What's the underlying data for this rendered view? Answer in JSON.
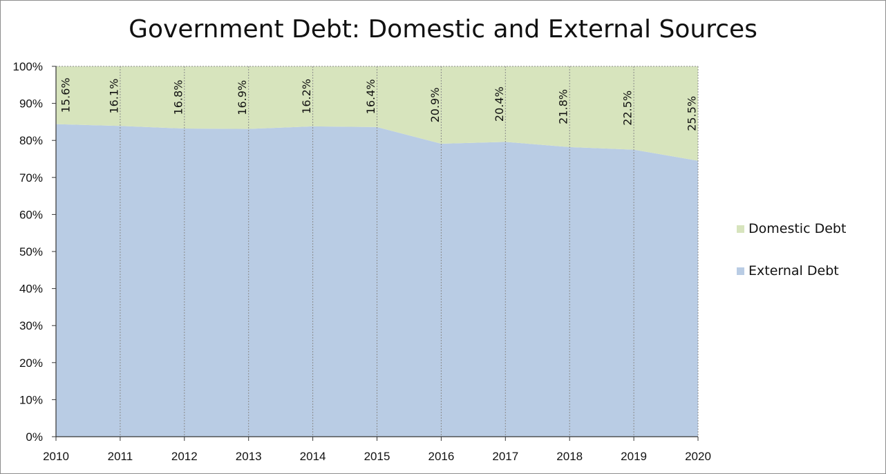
{
  "chart_data": {
    "type": "area",
    "stacked": true,
    "percent": true,
    "title": "Government Debt: Domestic and External Sources",
    "xlabel": "",
    "ylabel": "",
    "x": [
      "2010",
      "2011",
      "2012",
      "2013",
      "2014",
      "2015",
      "2016",
      "2017",
      "2018",
      "2019",
      "2020"
    ],
    "y_ticks": [
      "0%",
      "10%",
      "20%",
      "30%",
      "40%",
      "50%",
      "60%",
      "70%",
      "80%",
      "90%",
      "100%"
    ],
    "ylim": [
      0,
      100
    ],
    "series": [
      {
        "name": "External Debt",
        "color": "#b9cce4",
        "values": [
          84.4,
          83.9,
          83.2,
          83.1,
          83.8,
          83.6,
          79.1,
          79.6,
          78.2,
          77.5,
          74.5
        ]
      },
      {
        "name": "Domestic Debt",
        "color": "#d7e4bd",
        "values": [
          15.6,
          16.1,
          16.8,
          16.9,
          16.2,
          16.4,
          20.9,
          20.4,
          21.8,
          22.5,
          25.5
        ],
        "data_labels": [
          "15.6%",
          "16.1%",
          "16.8%",
          "16.9%",
          "16.2%",
          "16.4%",
          "20.9%",
          "20.4%",
          "21.8%",
          "22.5%",
          "25.5%"
        ]
      }
    ],
    "legend": {
      "position": "right",
      "entries": [
        "Domestic Debt",
        "External Debt"
      ]
    },
    "grid": {
      "vertical_dotted": true,
      "horizontal": false
    }
  }
}
